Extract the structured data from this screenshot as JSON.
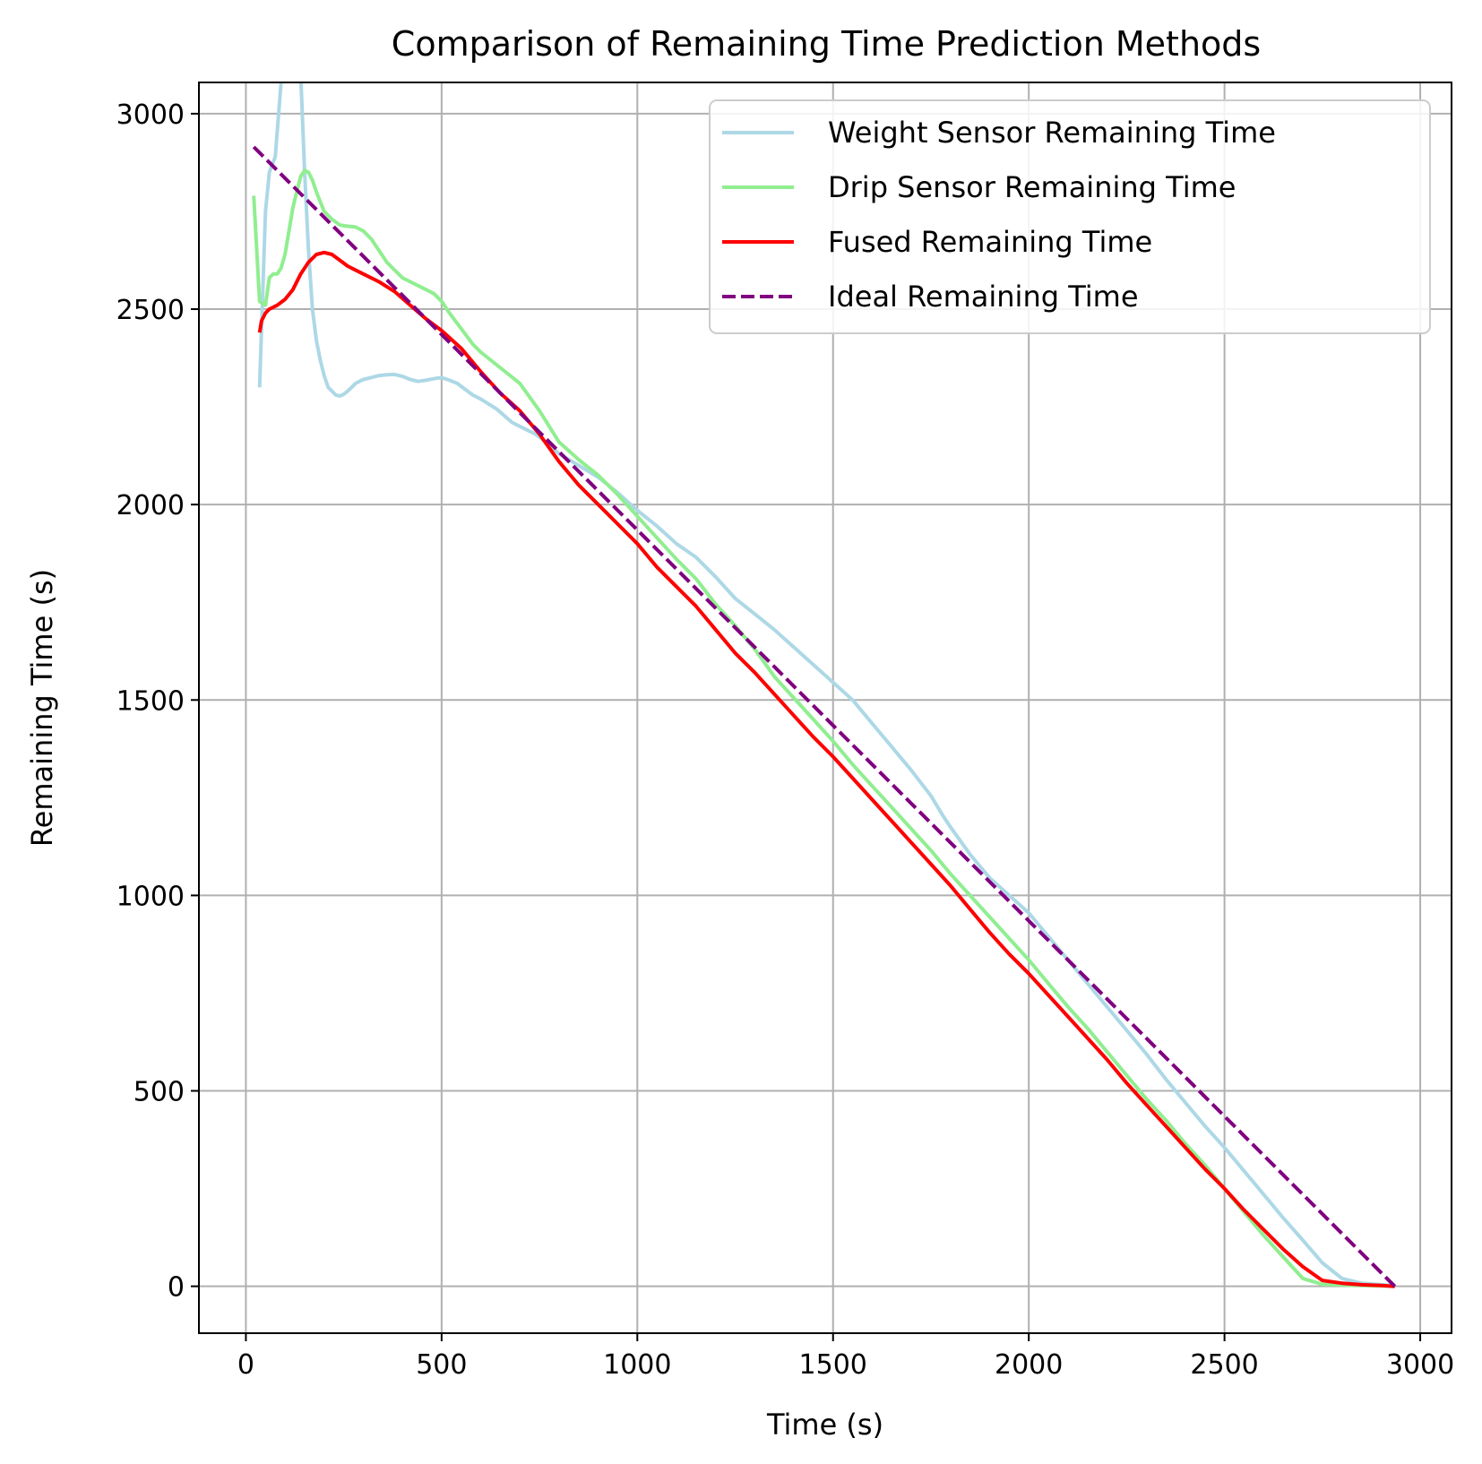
{
  "chart_data": {
    "type": "line",
    "title": "Comparison of Remaining Time Prediction Methods",
    "xlabel": "Time (s)",
    "ylabel": "Remaining Time (s)",
    "xlim": [
      -120,
      3080
    ],
    "ylim": [
      -120,
      3080
    ],
    "xticks": [
      0,
      500,
      1000,
      1500,
      2000,
      2500,
      3000
    ],
    "yticks": [
      0,
      500,
      1000,
      1500,
      2000,
      2500,
      3000
    ],
    "xtick_labels": [
      "0",
      "500",
      "1000",
      "1500",
      "2000",
      "2500",
      "3000"
    ],
    "ytick_labels": [
      "0",
      "500",
      "1000",
      "1500",
      "2000",
      "2500",
      "3000"
    ],
    "grid": true,
    "legend_position": "top-right",
    "series": [
      {
        "name": "Weight Sensor Remaining Time",
        "color": "#add8e6",
        "style": "solid",
        "x": [
          35,
          40,
          50,
          60,
          75,
          90,
          100,
          110,
          120,
          130,
          140,
          150,
          160,
          170,
          180,
          190,
          200,
          210,
          220,
          230,
          240,
          250,
          260,
          270,
          280,
          290,
          300,
          320,
          340,
          360,
          380,
          400,
          420,
          440,
          460,
          480,
          500,
          520,
          540,
          560,
          580,
          600,
          640,
          680,
          700,
          720,
          740,
          760,
          800,
          850,
          900,
          950,
          1000,
          1050,
          1100,
          1150,
          1200,
          1250,
          1300,
          1350,
          1400,
          1450,
          1500,
          1550,
          1600,
          1650,
          1700,
          1750,
          1780,
          1800,
          1850,
          1900,
          1950,
          2000,
          2050,
          2100,
          2150,
          2200,
          2250,
          2300,
          2350,
          2400,
          2450,
          2500,
          2550,
          2600,
          2650,
          2700,
          2750,
          2800,
          2850,
          2900,
          2935
        ],
        "values": [
          2300,
          2450,
          2750,
          2850,
          2890,
          3080,
          3180,
          3300,
          3350,
          3250,
          3100,
          2850,
          2650,
          2500,
          2420,
          2370,
          2330,
          2300,
          2290,
          2280,
          2278,
          2282,
          2290,
          2300,
          2310,
          2315,
          2320,
          2325,
          2330,
          2332,
          2333,
          2328,
          2320,
          2315,
          2318,
          2322,
          2325,
          2318,
          2310,
          2295,
          2280,
          2270,
          2245,
          2210,
          2200,
          2190,
          2180,
          2165,
          2130,
          2100,
          2070,
          2030,
          1985,
          1945,
          1900,
          1865,
          1815,
          1760,
          1720,
          1680,
          1635,
          1590,
          1545,
          1500,
          1440,
          1380,
          1320,
          1255,
          1205,
          1175,
          1105,
          1045,
          1000,
          955,
          895,
          835,
          775,
          715,
          655,
          595,
          530,
          470,
          410,
          355,
          295,
          235,
          175,
          118,
          60,
          20,
          8,
          4,
          2
        ]
      },
      {
        "name": "Drip Sensor Remaining Time",
        "color": "#90ee90",
        "style": "solid",
        "x": [
          20,
          35,
          50,
          60,
          70,
          80,
          90,
          100,
          110,
          120,
          130,
          140,
          150,
          160,
          170,
          180,
          190,
          200,
          220,
          240,
          260,
          280,
          300,
          320,
          340,
          360,
          380,
          400,
          420,
          440,
          460,
          480,
          500,
          520,
          550,
          580,
          600,
          650,
          700,
          750,
          800,
          850,
          900,
          950,
          1000,
          1050,
          1100,
          1150,
          1200,
          1250,
          1300,
          1350,
          1400,
          1450,
          1500,
          1550,
          1600,
          1650,
          1700,
          1750,
          1800,
          1850,
          1900,
          1950,
          2000,
          2050,
          2100,
          2150,
          2200,
          2250,
          2300,
          2350,
          2400,
          2450,
          2500,
          2550,
          2600,
          2650,
          2700,
          2750,
          2800,
          2850,
          2900,
          2935
        ],
        "values": [
          2790,
          2520,
          2510,
          2580,
          2590,
          2590,
          2605,
          2640,
          2700,
          2760,
          2800,
          2840,
          2855,
          2850,
          2830,
          2800,
          2775,
          2750,
          2730,
          2715,
          2712,
          2710,
          2700,
          2680,
          2650,
          2620,
          2600,
          2580,
          2570,
          2560,
          2550,
          2540,
          2520,
          2490,
          2450,
          2410,
          2390,
          2350,
          2310,
          2240,
          2160,
          2115,
          2075,
          2025,
          1970,
          1915,
          1860,
          1810,
          1745,
          1690,
          1630,
          1560,
          1505,
          1450,
          1395,
          1335,
          1280,
          1225,
          1170,
          1115,
          1055,
          1000,
          945,
          890,
          835,
          775,
          715,
          660,
          600,
          540,
          480,
          425,
          365,
          310,
          250,
          190,
          130,
          75,
          20,
          5,
          3,
          2,
          1,
          0
        ]
      },
      {
        "name": "Fused Remaining Time",
        "color": "#ff0000",
        "style": "solid",
        "x": [
          35,
          40,
          50,
          60,
          80,
          100,
          120,
          140,
          160,
          180,
          200,
          220,
          240,
          260,
          280,
          300,
          340,
          380,
          420,
          460,
          500,
          550,
          600,
          650,
          700,
          750,
          800,
          850,
          900,
          950,
          1000,
          1050,
          1100,
          1150,
          1200,
          1250,
          1300,
          1350,
          1400,
          1450,
          1500,
          1550,
          1600,
          1650,
          1700,
          1750,
          1800,
          1850,
          1900,
          1950,
          2000,
          2050,
          2100,
          2150,
          2200,
          2250,
          2300,
          2350,
          2400,
          2450,
          2500,
          2550,
          2600,
          2650,
          2700,
          2750,
          2800,
          2850,
          2900,
          2935
        ],
        "values": [
          2440,
          2470,
          2490,
          2500,
          2510,
          2525,
          2550,
          2590,
          2620,
          2640,
          2645,
          2640,
          2625,
          2610,
          2600,
          2590,
          2570,
          2545,
          2510,
          2475,
          2445,
          2400,
          2340,
          2285,
          2240,
          2180,
          2110,
          2050,
          2000,
          1950,
          1900,
          1840,
          1790,
          1740,
          1680,
          1620,
          1570,
          1515,
          1460,
          1405,
          1355,
          1300,
          1245,
          1190,
          1135,
          1080,
          1025,
          965,
          905,
          850,
          800,
          745,
          690,
          635,
          580,
          520,
          465,
          410,
          355,
          300,
          250,
          195,
          145,
          95,
          50,
          15,
          8,
          4,
          2,
          0
        ]
      },
      {
        "name": "Ideal Remaining Time",
        "color": "#800080",
        "style": "dashed",
        "x": [
          20,
          2935
        ],
        "values": [
          2915,
          0
        ]
      }
    ]
  }
}
